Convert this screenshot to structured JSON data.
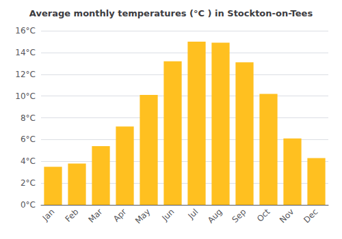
{
  "chart_data": {
    "type": "bar",
    "title": "Average monthly temperatures (°C ) in Stockton-on-Tees",
    "categories": [
      "Jan",
      "Feb",
      "Mar",
      "Apr",
      "May",
      "Jun",
      "Jul",
      "Aug",
      "Sep",
      "Oct",
      "Nov",
      "Dec"
    ],
    "values": [
      3.5,
      3.8,
      5.4,
      7.2,
      10.1,
      13.2,
      15.0,
      14.9,
      13.1,
      10.2,
      6.1,
      4.3
    ],
    "color": "#FFC020",
    "ylim": [
      0,
      16
    ],
    "yticks": [
      {
        "value": 0,
        "label": "0°C"
      },
      {
        "value": 2,
        "label": "2°C"
      },
      {
        "value": 4,
        "label": "4°C"
      },
      {
        "value": 6,
        "label": "6°C"
      },
      {
        "value": 8,
        "label": "8°C"
      },
      {
        "value": 10,
        "label": "10°C"
      },
      {
        "value": 12,
        "label": "12°C"
      },
      {
        "value": 14,
        "label": "14°C"
      },
      {
        "value": 16,
        "label": "16°C"
      }
    ],
    "grid": true
  }
}
